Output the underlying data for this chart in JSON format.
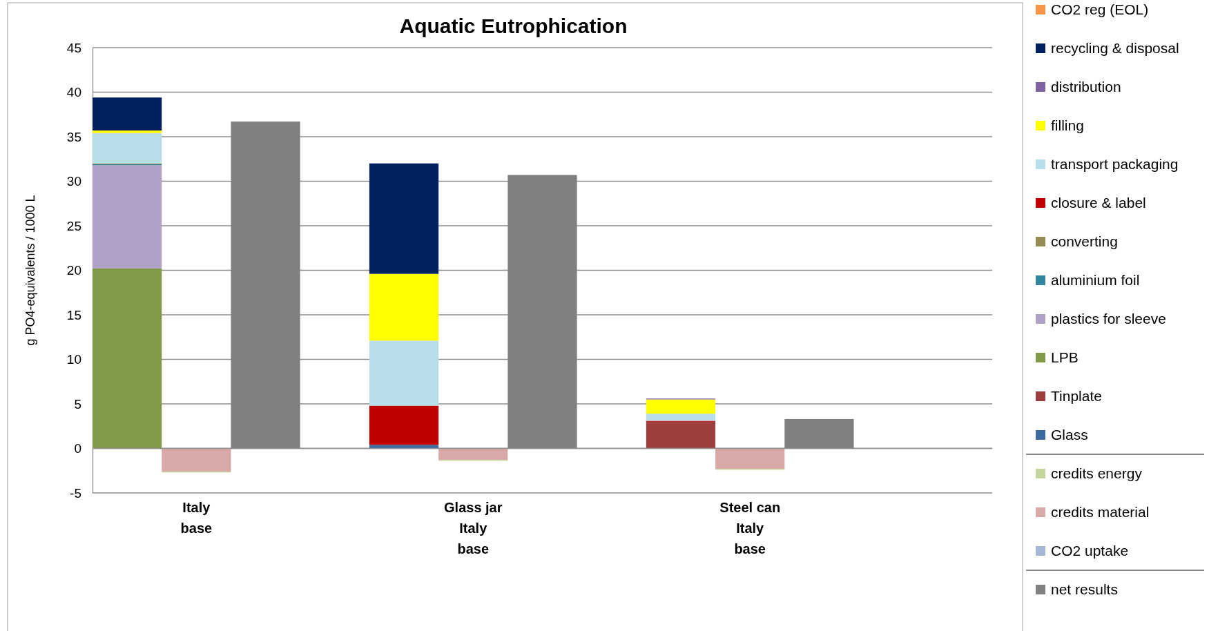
{
  "chart_data": {
    "type": "bar",
    "title": "Aquatic Eutrophication",
    "ylabel": "g PO4-equivalents / 1000 L",
    "categories": [
      null,
      "Italy\nbase",
      null,
      null,
      null,
      "Glass jar\nItaly\nbase",
      null,
      null,
      null,
      "Steel can\nItaly\nbase",
      null,
      null,
      null
    ],
    "stacked": true,
    "grid": "y",
    "legend": "right",
    "ylim": [
      -5,
      45
    ],
    "yticks": [
      -5,
      0,
      5,
      10,
      15,
      20,
      25,
      30,
      35,
      40,
      45
    ],
    "series": [
      {
        "name": "net results",
        "color": "#808080",
        "values": [
          null,
          null,
          36.7,
          null,
          null,
          null,
          30.7,
          null,
          null,
          null,
          3.3,
          null,
          null
        ]
      },
      {
        "name": "CO2 uptake",
        "color": "#a5b6d6",
        "values": [
          null,
          null,
          null,
          null,
          null,
          null,
          null,
          null,
          null,
          null,
          null,
          null,
          null
        ]
      },
      {
        "name": "credits material",
        "color": "#d9a9a8",
        "values": [
          null,
          -2.6,
          null,
          null,
          null,
          -1.3,
          null,
          null,
          null,
          -2.3,
          null,
          null,
          null
        ]
      },
      {
        "name": "credits energy",
        "color": "#c3d69b",
        "values": [
          null,
          -0.1,
          null,
          null,
          null,
          -0.1,
          null,
          null,
          null,
          -0.1,
          null,
          null,
          null
        ]
      },
      {
        "name": "Glass",
        "color": "#3d6aa0",
        "values": [
          null,
          null,
          null,
          null,
          0.4,
          null,
          null,
          null,
          null,
          null,
          null,
          null,
          null
        ]
      },
      {
        "name": "Tinplate",
        "color": "#9b403e",
        "values": [
          null,
          null,
          null,
          null,
          null,
          null,
          null,
          null,
          3.0,
          null,
          null,
          null,
          null
        ]
      },
      {
        "name": "LPB",
        "color": "#7f9a48",
        "values": [
          20.2,
          null,
          null,
          null,
          null,
          null,
          null,
          null,
          null,
          null,
          null,
          null,
          null
        ]
      },
      {
        "name": "plastics for sleeve",
        "color": "#b2a1c7",
        "values": [
          11.6,
          null,
          null,
          null,
          null,
          null,
          null,
          null,
          null,
          null,
          null,
          null,
          null
        ]
      },
      {
        "name": "aluminium foil",
        "color": "#31859c",
        "values": [
          0.1,
          null,
          null,
          null,
          null,
          null,
          null,
          null,
          null,
          null,
          null,
          null,
          null
        ]
      },
      {
        "name": "converting",
        "color": "#948a54",
        "values": [
          0.1,
          null,
          null,
          null,
          null,
          null,
          null,
          null,
          null,
          null,
          null,
          null,
          null
        ]
      },
      {
        "name": "closure & label",
        "color": "#c00000",
        "values": [
          null,
          null,
          null,
          null,
          4.4,
          null,
          null,
          null,
          0.1,
          null,
          null,
          null,
          null
        ]
      },
      {
        "name": "transport packaging",
        "color": "#b7dde8",
        "values": [
          3.4,
          null,
          null,
          null,
          7.3,
          null,
          null,
          null,
          0.8,
          null,
          null,
          null,
          null
        ]
      },
      {
        "name": "filling",
        "color": "#ffff00",
        "values": [
          0.3,
          null,
          null,
          null,
          7.5,
          null,
          null,
          null,
          1.6,
          null,
          null,
          null,
          null
        ]
      },
      {
        "name": "distribution",
        "color": "#8064a2",
        "values": [
          null,
          null,
          null,
          null,
          null,
          null,
          null,
          null,
          0.1,
          null,
          null,
          null,
          null
        ]
      },
      {
        "name": "recycling & disposal",
        "color": "#002060",
        "values": [
          3.7,
          null,
          null,
          null,
          12.4,
          null,
          null,
          null,
          null,
          null,
          null,
          null,
          null
        ]
      },
      {
        "name": "CO2 reg (EOL)",
        "color": "#f79646",
        "values": [
          null,
          null,
          null,
          null,
          null,
          null,
          null,
          null,
          null,
          null,
          null,
          null,
          null
        ]
      }
    ]
  }
}
